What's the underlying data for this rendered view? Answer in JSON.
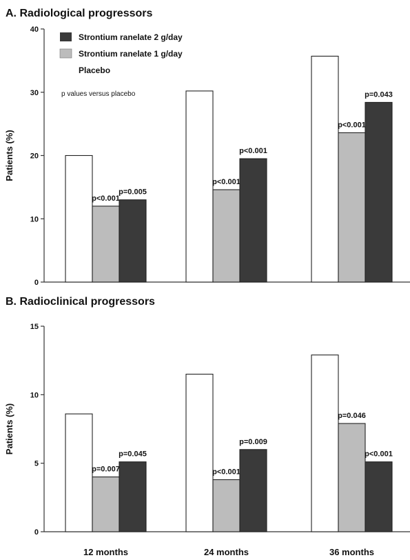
{
  "colors": {
    "strontium_2g": "#3a3a3a",
    "strontium_1g": "#bcbcbc",
    "placebo": "#ffffff",
    "outline": "#222222"
  },
  "legend": {
    "items": [
      {
        "label": "Strontium ranelate 2 g/day",
        "swatch": "strontium_2g"
      },
      {
        "label": "Strontium ranelate 1 g/day",
        "swatch": "strontium_1g"
      },
      {
        "label": "Placebo",
        "swatch": "none"
      }
    ],
    "note": "p values versus placebo"
  },
  "chart_data": [
    {
      "type": "bar",
      "title": "A. Radiological progressors",
      "ylabel": "Patients (%)",
      "ylim": [
        0,
        40
      ],
      "yticks": [
        0,
        10,
        20,
        30,
        40
      ],
      "categories": [
        "12 months",
        "24 months",
        "36 months"
      ],
      "series": [
        {
          "name": "Placebo",
          "values": [
            20,
            30.2,
            35.7
          ]
        },
        {
          "name": "Strontium ranelate 1 g/day",
          "values": [
            12,
            14.6,
            23.6
          ],
          "labels": [
            "p<0.001",
            "p<0.001",
            "p<0.001"
          ]
        },
        {
          "name": "Strontium ranelate 2 g/day",
          "values": [
            13,
            19.5,
            28.4
          ],
          "labels": [
            "p=0.005",
            "p<0.001",
            "p=0.043"
          ]
        }
      ],
      "grid": false,
      "legend": "top-left"
    },
    {
      "type": "bar",
      "title": "B. Radioclinical progressors",
      "ylabel": "Patients (%)",
      "ylim": [
        0,
        15
      ],
      "yticks": [
        0,
        5,
        10,
        15
      ],
      "categories": [
        "12 months",
        "24 months",
        "36 months"
      ],
      "series": [
        {
          "name": "Placebo",
          "values": [
            8.6,
            11.5,
            12.9
          ]
        },
        {
          "name": "Strontium ranelate 1 g/day",
          "values": [
            4,
            3.8,
            7.9
          ],
          "labels": [
            "p=0.007",
            "p<0.001",
            "p=0.046"
          ]
        },
        {
          "name": "Strontium ranelate 2 g/day",
          "values": [
            5.1,
            6,
            5.1
          ],
          "labels": [
            "p=0.045",
            "p=0.009",
            "p<0.001"
          ]
        }
      ],
      "grid": false,
      "legend": "none"
    }
  ]
}
